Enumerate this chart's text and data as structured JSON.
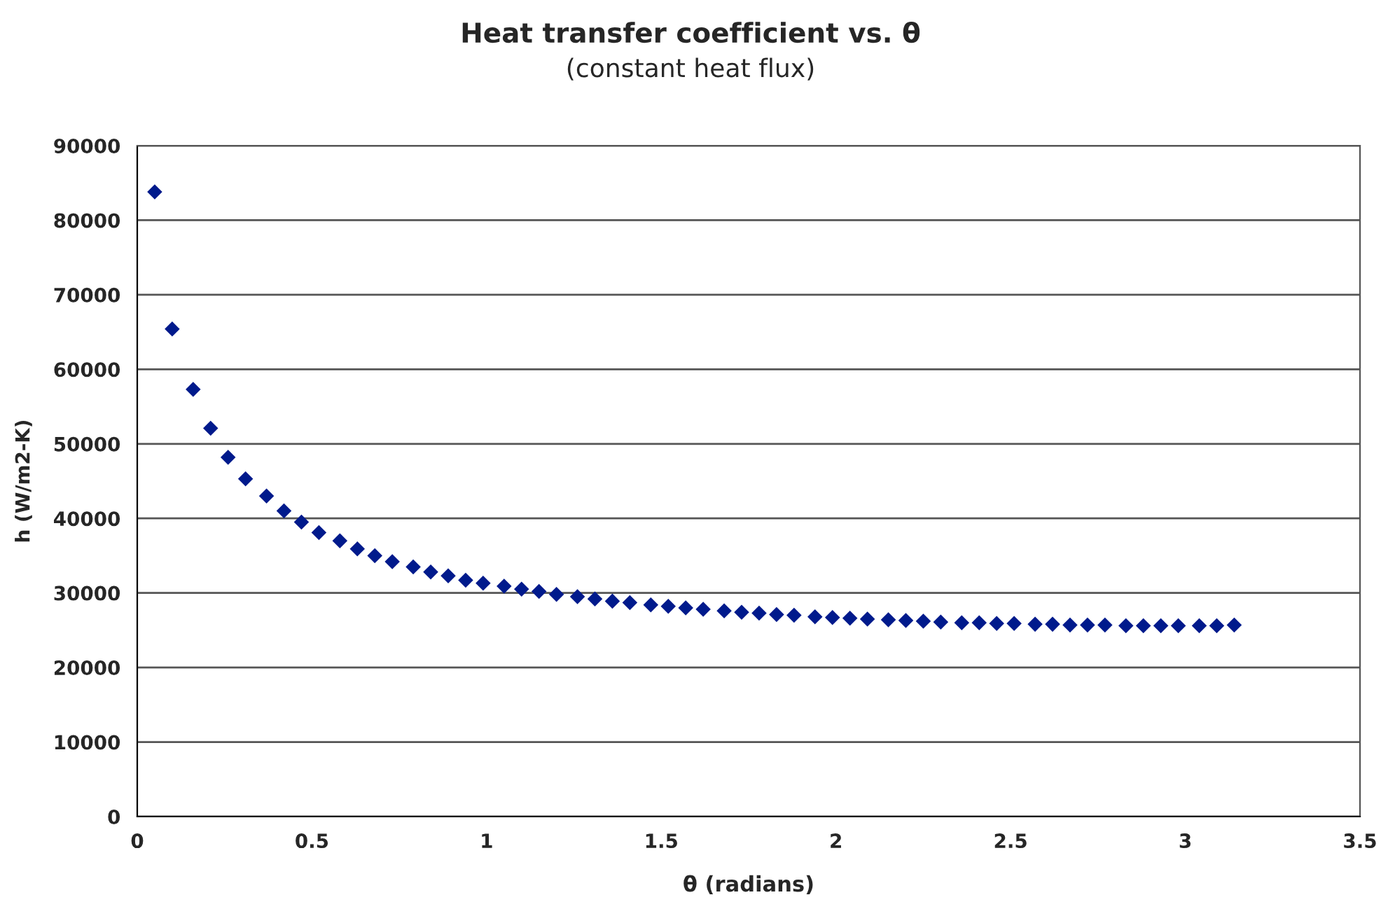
{
  "chart_data": {
    "type": "scatter",
    "title": "Heat transfer coefficient vs. θ",
    "subtitle": "(constant heat flux)",
    "xlabel": "θ (radians)",
    "ylabel": "h (W/m2-K)",
    "x": [
      0.05,
      0.1,
      0.16,
      0.21,
      0.26,
      0.31,
      0.37,
      0.42,
      0.47,
      0.52,
      0.58,
      0.63,
      0.68,
      0.73,
      0.79,
      0.84,
      0.89,
      0.94,
      0.99,
      1.05,
      1.1,
      1.15,
      1.2,
      1.26,
      1.31,
      1.36,
      1.41,
      1.47,
      1.52,
      1.57,
      1.62,
      1.68,
      1.73,
      1.78,
      1.83,
      1.88,
      1.94,
      1.99,
      2.04,
      2.09,
      2.15,
      2.2,
      2.25,
      2.3,
      2.36,
      2.41,
      2.46,
      2.51,
      2.57,
      2.62,
      2.67,
      2.72,
      2.77,
      2.83,
      2.88,
      2.93,
      2.98,
      3.04,
      3.09,
      3.14
    ],
    "series": [
      {
        "color": "#001a8c",
        "values": [
          83800,
          65400,
          57300,
          52100,
          48200,
          45300,
          43000,
          41000,
          39500,
          38100,
          37000,
          35900,
          35000,
          34200,
          33500,
          32800,
          32300,
          31700,
          31300,
          30900,
          30500,
          30200,
          29800,
          29500,
          29200,
          28900,
          28700,
          28400,
          28200,
          28000,
          27800,
          27600,
          27400,
          27300,
          27100,
          27000,
          26800,
          26700,
          26600,
          26500,
          26400,
          26300,
          26200,
          26100,
          26000,
          26000,
          25900,
          25900,
          25800,
          25800,
          25700,
          25700,
          25700,
          25600,
          25600,
          25600,
          25600,
          25600,
          25600,
          25700
        ]
      }
    ],
    "xlim": [
      0,
      3.5
    ],
    "xticks": [
      0,
      0.5,
      1,
      1.5,
      2,
      2.5,
      3,
      3.5
    ],
    "ylim": [
      0,
      90000
    ],
    "yticks": [
      0,
      10000,
      20000,
      30000,
      40000,
      50000,
      60000,
      70000,
      80000,
      90000
    ],
    "grid": "y",
    "marker": "diamond"
  }
}
